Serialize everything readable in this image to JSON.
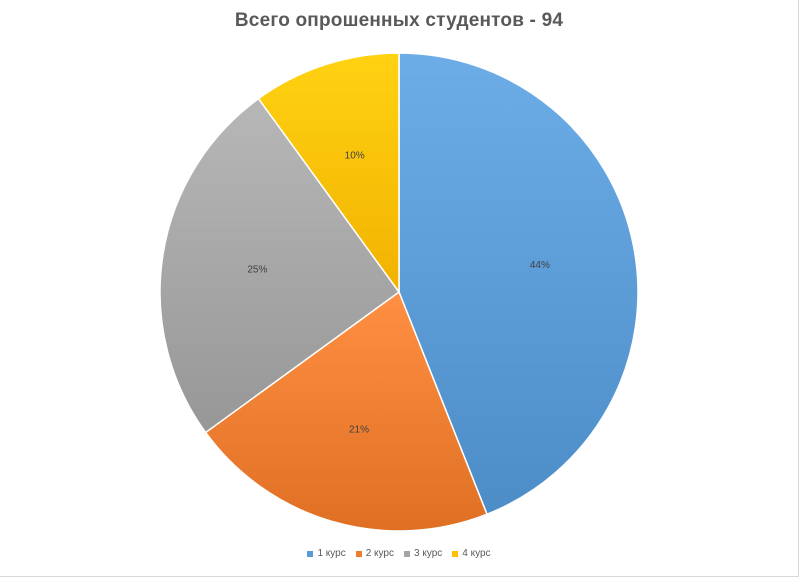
{
  "chart_data": {
    "type": "pie",
    "title": "Всего опрошенных студентов - 94",
    "categories": [
      "1 курс",
      "2 курс",
      "3 курс",
      "4 курс"
    ],
    "values": [
      44,
      21,
      25,
      10
    ],
    "labels": [
      "44%",
      "21%",
      "25%",
      "10%"
    ],
    "colors": [
      "#5b9bd5",
      "#ed7d31",
      "#a5a5a5",
      "#ffc000"
    ],
    "legend": "bottom"
  }
}
